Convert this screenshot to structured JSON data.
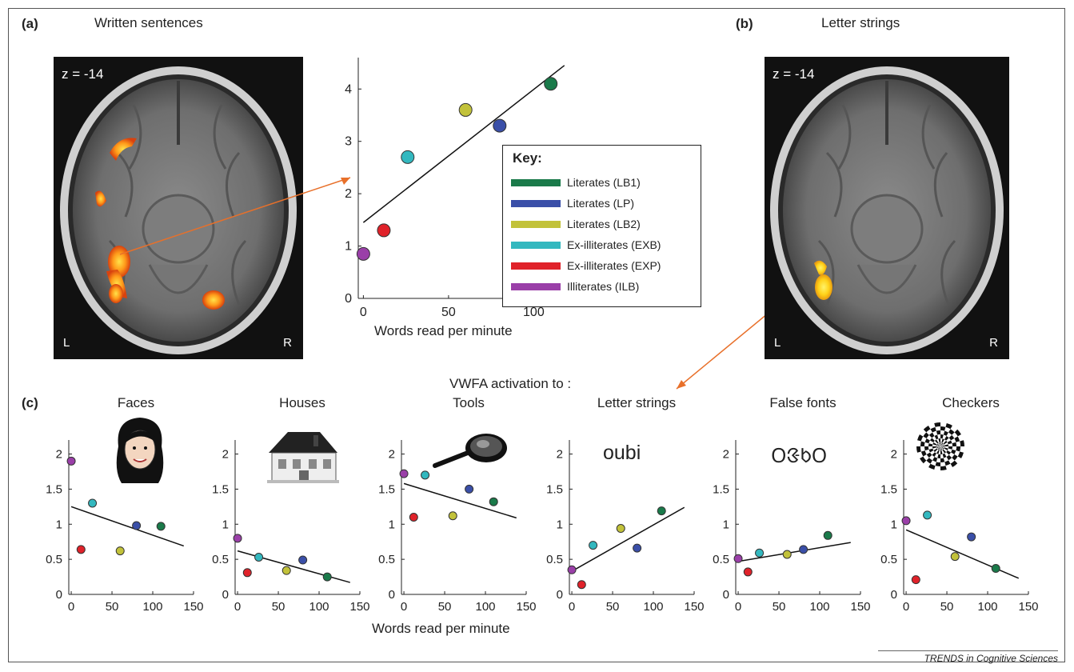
{
  "panel_a": {
    "label": "(a)",
    "title": "Written sentences",
    "slice": "z = -14",
    "left": "L",
    "right": "R"
  },
  "panel_b": {
    "label": "(b)",
    "title": "Letter strings",
    "slice": "z = -14",
    "left": "L",
    "right": "R"
  },
  "panel_c": {
    "label": "(c)",
    "heading": "VWFA activation to :",
    "xlabel": "Words read per minute"
  },
  "key": {
    "title": "Key:",
    "items": [
      {
        "label": "Literates (LB1)",
        "color": "#1a7a4a"
      },
      {
        "label": "Literates (LP)",
        "color": "#3a4fa8"
      },
      {
        "label": "Literates (LB2)",
        "color": "#c2c23a"
      },
      {
        "label": "Ex-illiterates (EXB)",
        "color": "#33b8bf"
      },
      {
        "label": "Ex-illiterates (EXP)",
        "color": "#e0222a"
      },
      {
        "label": "Illiterates (ILB)",
        "color": "#9a3fa8"
      }
    ]
  },
  "footer": "TRENDS in Cognitive Sciences",
  "chart_data": [
    {
      "type": "scatter",
      "panel": "a",
      "xlabel": "Words read per minute",
      "ylabel": "",
      "xlim": [
        -3,
        120
      ],
      "ylim": [
        0,
        4.6
      ],
      "xticks": [
        0,
        50,
        100
      ],
      "yticks": [
        0,
        1,
        2,
        3,
        4
      ],
      "points": [
        {
          "group": "Literates (LB1)",
          "x": 110,
          "y": 4.1
        },
        {
          "group": "Literates (LP)",
          "x": 80,
          "y": 3.3
        },
        {
          "group": "Literates (LB2)",
          "x": 60,
          "y": 3.6
        },
        {
          "group": "Ex-illiterates (EXB)",
          "x": 26,
          "y": 2.7
        },
        {
          "group": "Ex-illiterates (EXP)",
          "x": 12,
          "y": 1.3
        },
        {
          "group": "Illiterates (ILB)",
          "x": 0,
          "y": 0.85
        }
      ],
      "fit": {
        "x": [
          0,
          118
        ],
        "y": [
          1.45,
          4.45
        ]
      }
    },
    {
      "type": "scatter",
      "title": "Faces",
      "xlim": [
        -3,
        150
      ],
      "ylim": [
        0,
        2.2
      ],
      "xticks": [
        0,
        50,
        100,
        150
      ],
      "yticks": [
        0,
        0.5,
        1,
        1.5,
        2
      ],
      "points": [
        {
          "group": "Literates (LB1)",
          "x": 110,
          "y": 0.97
        },
        {
          "group": "Literates (LP)",
          "x": 80,
          "y": 0.98
        },
        {
          "group": "Literates (LB2)",
          "x": 60,
          "y": 0.62
        },
        {
          "group": "Ex-illiterates (EXB)",
          "x": 26,
          "y": 1.3
        },
        {
          "group": "Ex-illiterates (EXP)",
          "x": 12,
          "y": 0.64
        },
        {
          "group": "Illiterates (ILB)",
          "x": 0,
          "y": 1.9
        }
      ],
      "fit": {
        "x": [
          0,
          138
        ],
        "y": [
          1.25,
          0.69
        ]
      }
    },
    {
      "type": "scatter",
      "title": "Houses",
      "xlim": [
        -3,
        150
      ],
      "ylim": [
        0,
        2.2
      ],
      "xticks": [
        0,
        50,
        100,
        150
      ],
      "yticks": [
        0,
        0.5,
        1,
        1.5,
        2
      ],
      "points": [
        {
          "group": "Literates (LB1)",
          "x": 110,
          "y": 0.25
        },
        {
          "group": "Literates (LP)",
          "x": 80,
          "y": 0.49
        },
        {
          "group": "Literates (LB2)",
          "x": 60,
          "y": 0.34
        },
        {
          "group": "Ex-illiterates (EXB)",
          "x": 26,
          "y": 0.53
        },
        {
          "group": "Ex-illiterates (EXP)",
          "x": 12,
          "y": 0.31
        },
        {
          "group": "Illiterates (ILB)",
          "x": 0,
          "y": 0.8
        }
      ],
      "fit": {
        "x": [
          0,
          138
        ],
        "y": [
          0.62,
          0.17
        ]
      }
    },
    {
      "type": "scatter",
      "title": "Tools",
      "xlim": [
        -3,
        150
      ],
      "ylim": [
        0,
        2.2
      ],
      "xticks": [
        0,
        50,
        100,
        150
      ],
      "yticks": [
        0,
        0.5,
        1,
        1.5,
        2
      ],
      "points": [
        {
          "group": "Literates (LB1)",
          "x": 110,
          "y": 1.32
        },
        {
          "group": "Literates (LP)",
          "x": 80,
          "y": 1.5
        },
        {
          "group": "Literates (LB2)",
          "x": 60,
          "y": 1.12
        },
        {
          "group": "Ex-illiterates (EXB)",
          "x": 26,
          "y": 1.7
        },
        {
          "group": "Ex-illiterates (EXP)",
          "x": 12,
          "y": 1.1
        },
        {
          "group": "Illiterates (ILB)",
          "x": 0,
          "y": 1.72
        }
      ],
      "fit": {
        "x": [
          0,
          138
        ],
        "y": [
          1.58,
          1.09
        ]
      }
    },
    {
      "type": "scatter",
      "title": "Letter strings",
      "icon_text": "oubi",
      "xlim": [
        -3,
        150
      ],
      "ylim": [
        0,
        2.2
      ],
      "xticks": [
        0,
        50,
        100,
        150
      ],
      "yticks": [
        0,
        0.5,
        1,
        1.5,
        2
      ],
      "points": [
        {
          "group": "Literates (LB1)",
          "x": 110,
          "y": 1.19
        },
        {
          "group": "Literates (LP)",
          "x": 80,
          "y": 0.66
        },
        {
          "group": "Literates (LB2)",
          "x": 60,
          "y": 0.94
        },
        {
          "group": "Ex-illiterates (EXB)",
          "x": 26,
          "y": 0.7
        },
        {
          "group": "Ex-illiterates (EXP)",
          "x": 12,
          "y": 0.14
        },
        {
          "group": "Illiterates (ILB)",
          "x": 0,
          "y": 0.35
        }
      ],
      "fit": {
        "x": [
          0,
          138
        ],
        "y": [
          0.33,
          1.24
        ]
      }
    },
    {
      "type": "scatter",
      "title": "False fonts",
      "icon_text": "ᱛᱝᱠᱛ",
      "xlim": [
        -3,
        150
      ],
      "ylim": [
        0,
        2.2
      ],
      "xticks": [
        0,
        50,
        100,
        150
      ],
      "yticks": [
        0,
        0.5,
        1,
        1.5,
        2
      ],
      "points": [
        {
          "group": "Literates (LB1)",
          "x": 110,
          "y": 0.84
        },
        {
          "group": "Literates (LP)",
          "x": 80,
          "y": 0.64
        },
        {
          "group": "Literates (LB2)",
          "x": 60,
          "y": 0.57
        },
        {
          "group": "Ex-illiterates (EXB)",
          "x": 26,
          "y": 0.59
        },
        {
          "group": "Ex-illiterates (EXP)",
          "x": 12,
          "y": 0.32
        },
        {
          "group": "Illiterates (ILB)",
          "x": 0,
          "y": 0.51
        }
      ],
      "fit": {
        "x": [
          0,
          138
        ],
        "y": [
          0.47,
          0.74
        ]
      }
    },
    {
      "type": "scatter",
      "title": "Checkers",
      "xlim": [
        -3,
        150
      ],
      "ylim": [
        0,
        2.2
      ],
      "xticks": [
        0,
        50,
        100,
        150
      ],
      "yticks": [
        0,
        0.5,
        1,
        1.5,
        2
      ],
      "points": [
        {
          "group": "Literates (LB1)",
          "x": 110,
          "y": 0.37
        },
        {
          "group": "Literates (LP)",
          "x": 80,
          "y": 0.82
        },
        {
          "group": "Literates (LB2)",
          "x": 60,
          "y": 0.54
        },
        {
          "group": "Ex-illiterates (EXB)",
          "x": 26,
          "y": 1.13
        },
        {
          "group": "Ex-illiterates (EXP)",
          "x": 12,
          "y": 0.21
        },
        {
          "group": "Illiterates (ILB)",
          "x": 0,
          "y": 1.05
        }
      ],
      "fit": {
        "x": [
          0,
          138
        ],
        "y": [
          0.92,
          0.23
        ]
      }
    }
  ]
}
